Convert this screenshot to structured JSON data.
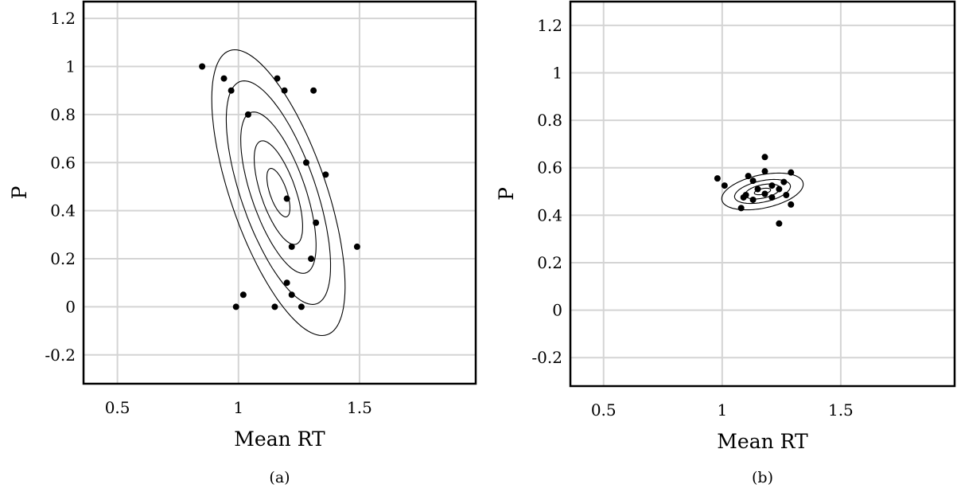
{
  "chart_data": [
    {
      "type": "scatter",
      "caption": "(a)",
      "xlabel": "Mean RT",
      "ylabel": "P",
      "xlim": [
        0.36,
        1.98
      ],
      "ylim": [
        -0.32,
        1.27
      ],
      "xticks": [
        0.5,
        1,
        1.5
      ],
      "xtick_labels": [
        "0.5",
        "1",
        "1.5"
      ],
      "yticks": [
        -0.2,
        0,
        0.2,
        0.4,
        0.6,
        0.8,
        1,
        1.2
      ],
      "ytick_labels": [
        "-0.2",
        "0",
        "0.2",
        "0.4",
        "0.6",
        "0.8",
        "1",
        "1.2"
      ],
      "grid": true,
      "points": [
        {
          "x": 0.85,
          "y": 1.0
        },
        {
          "x": 0.94,
          "y": 0.95
        },
        {
          "x": 0.97,
          "y": 0.9
        },
        {
          "x": 1.04,
          "y": 0.8
        },
        {
          "x": 1.16,
          "y": 0.95
        },
        {
          "x": 1.19,
          "y": 0.9
        },
        {
          "x": 1.31,
          "y": 0.9
        },
        {
          "x": 1.28,
          "y": 0.6
        },
        {
          "x": 1.36,
          "y": 0.55
        },
        {
          "x": 1.2,
          "y": 0.45
        },
        {
          "x": 1.32,
          "y": 0.35
        },
        {
          "x": 1.22,
          "y": 0.25
        },
        {
          "x": 1.49,
          "y": 0.25
        },
        {
          "x": 1.3,
          "y": 0.2
        },
        {
          "x": 1.2,
          "y": 0.1
        },
        {
          "x": 1.02,
          "y": 0.05
        },
        {
          "x": 1.22,
          "y": 0.05
        },
        {
          "x": 0.99,
          "y": 0.0
        },
        {
          "x": 1.15,
          "y": 0.0
        },
        {
          "x": 1.26,
          "y": 0.0
        }
      ],
      "contours": {
        "center": [
          1.165,
          0.475
        ],
        "angle_deg": 109,
        "semi_axes": [
          [
            0.105,
            0.035
          ],
          [
            0.225,
            0.072
          ],
          [
            0.35,
            0.112
          ],
          [
            0.485,
            0.155
          ],
          [
            0.62,
            0.198
          ]
        ]
      }
    },
    {
      "type": "scatter",
      "caption": "(b)",
      "xlabel": "Mean RT",
      "ylabel": "P",
      "xlim": [
        0.36,
        1.98
      ],
      "ylim": [
        -0.32,
        1.3
      ],
      "xticks": [
        0.5,
        1,
        1.5
      ],
      "xtick_labels": [
        "0.5",
        "1",
        "1.5"
      ],
      "yticks": [
        -0.2,
        0,
        0.2,
        0.4,
        0.6,
        0.8,
        1,
        1.2
      ],
      "ytick_labels": [
        "-0.2",
        "0",
        "0.2",
        "0.4",
        "0.6",
        "0.8",
        "1",
        "1.2"
      ],
      "grid": true,
      "points": [
        {
          "x": 0.98,
          "y": 0.555
        },
        {
          "x": 1.01,
          "y": 0.525
        },
        {
          "x": 1.08,
          "y": 0.43
        },
        {
          "x": 1.09,
          "y": 0.475
        },
        {
          "x": 1.1,
          "y": 0.485
        },
        {
          "x": 1.11,
          "y": 0.565
        },
        {
          "x": 1.13,
          "y": 0.545
        },
        {
          "x": 1.13,
          "y": 0.465
        },
        {
          "x": 1.15,
          "y": 0.51
        },
        {
          "x": 1.18,
          "y": 0.49
        },
        {
          "x": 1.18,
          "y": 0.645
        },
        {
          "x": 1.18,
          "y": 0.585
        },
        {
          "x": 1.21,
          "y": 0.525
        },
        {
          "x": 1.21,
          "y": 0.475
        },
        {
          "x": 1.24,
          "y": 0.51
        },
        {
          "x": 1.24,
          "y": 0.365
        },
        {
          "x": 1.26,
          "y": 0.54
        },
        {
          "x": 1.27,
          "y": 0.485
        },
        {
          "x": 1.29,
          "y": 0.58
        },
        {
          "x": 1.29,
          "y": 0.445
        }
      ],
      "contours": {
        "center": [
          1.17,
          0.5
        ],
        "angle_deg": 12,
        "semi_axes": [
          [
            0.035,
            0.012
          ],
          [
            0.075,
            0.028
          ],
          [
            0.12,
            0.045
          ],
          [
            0.175,
            0.07
          ]
        ]
      }
    }
  ]
}
